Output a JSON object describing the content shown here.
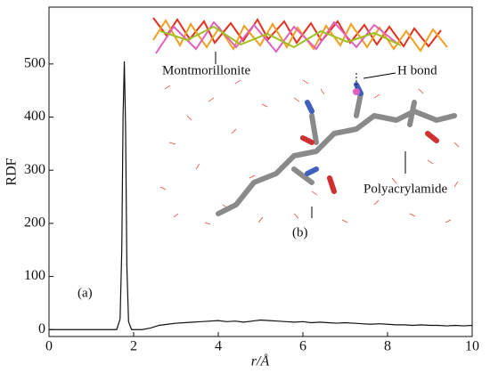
{
  "chart_data": {
    "type": "line",
    "xlabel": "r/Å",
    "ylabel": "RDF",
    "annotations": [
      "(a)",
      "(b)",
      "Montmorillonite",
      "H bond",
      "Polyacrylamide"
    ],
    "x": [
      0,
      1.6,
      1.68,
      1.72,
      1.75,
      1.78,
      1.81,
      1.84,
      1.88,
      1.95,
      2.2,
      2.4,
      2.6,
      2.8,
      3.0,
      3.2,
      3.4,
      3.6,
      3.8,
      4.0,
      4.2,
      4.4,
      4.6,
      4.8,
      5.0,
      5.2,
      5.4,
      5.6,
      5.8,
      6.0,
      6.2,
      6.4,
      6.6,
      6.8,
      7.0,
      7.2,
      7.4,
      7.6,
      7.8,
      8.0,
      8.2,
      8.4,
      8.6,
      8.8,
      9.0,
      9.2,
      9.4,
      9.6,
      9.8,
      10
    ],
    "series": [
      {
        "color": "#111111",
        "values": [
          0,
          0,
          20,
          150,
          400,
          505,
          380,
          120,
          15,
          0,
          0,
          3,
          8,
          10,
          12,
          13,
          14,
          15,
          16,
          17,
          15,
          16,
          14,
          16,
          18,
          17,
          16,
          15,
          14,
          15,
          13,
          14,
          13,
          12,
          13,
          12,
          11,
          10,
          11,
          10,
          9,
          9,
          8,
          9,
          8,
          8,
          7,
          8,
          7,
          8
        ]
      }
    ],
    "xlim": [
      0,
      10
    ],
    "xticks": [
      0,
      2,
      4,
      6,
      8,
      10
    ],
    "ylim": [
      -13,
      607
    ],
    "yticks": [
      0,
      100,
      200,
      300,
      400,
      500
    ]
  }
}
